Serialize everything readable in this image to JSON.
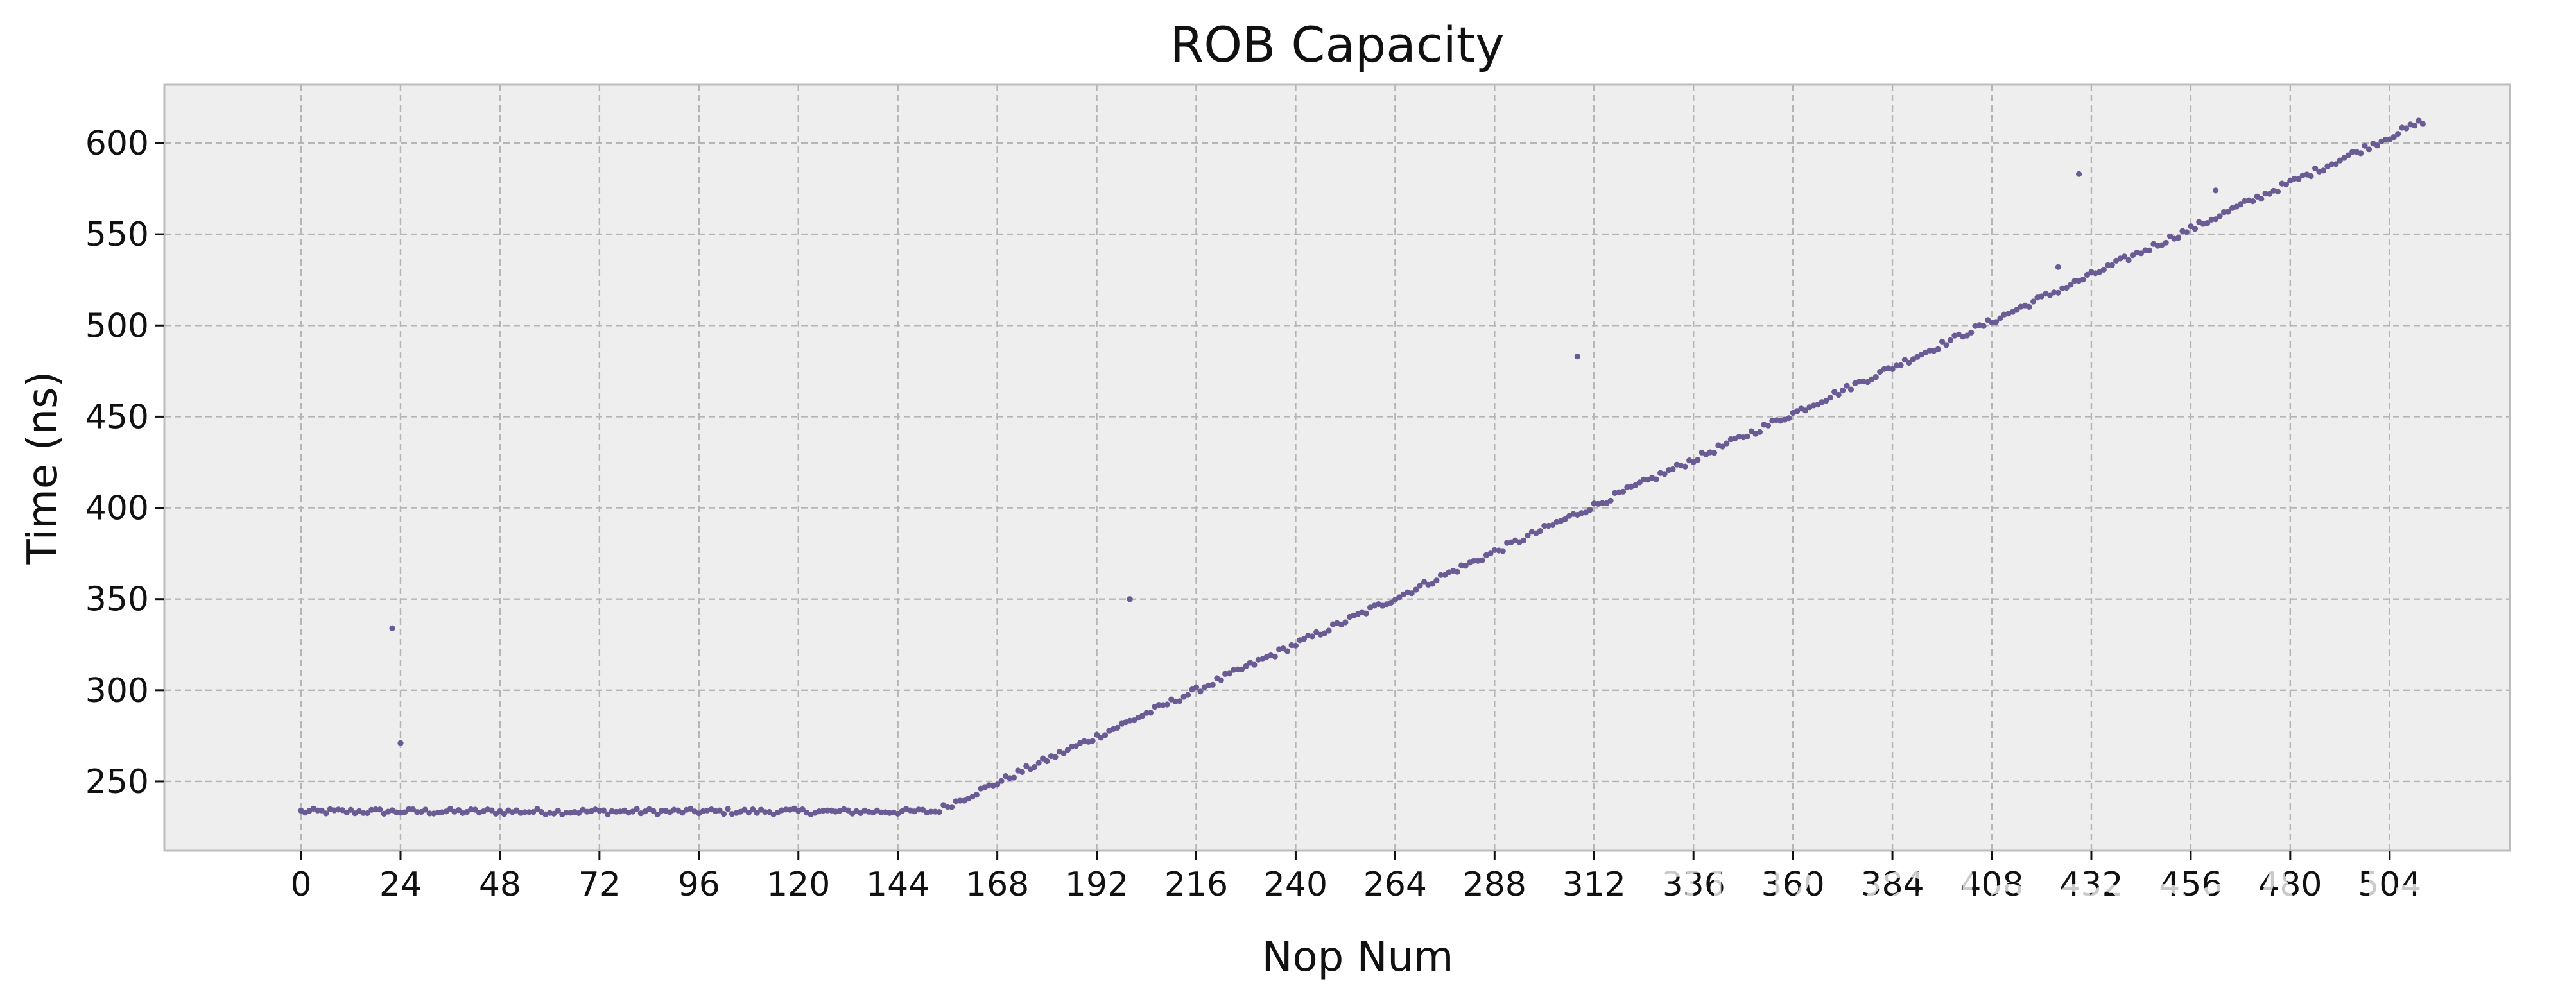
{
  "chart_data": {
    "type": "scatter",
    "title": "ROB Capacity",
    "xlabel": "Nop Num",
    "ylabel": "Time (ns)",
    "xlim": [
      -33,
      533
    ],
    "ylim": [
      212,
      632
    ],
    "xticks": [
      0,
      24,
      48,
      72,
      96,
      120,
      144,
      168,
      192,
      216,
      240,
      264,
      288,
      312,
      336,
      360,
      384,
      408,
      432,
      456,
      480,
      504
    ],
    "yticks": [
      250,
      300,
      350,
      400,
      450,
      500,
      550,
      600
    ],
    "grid": true,
    "marker_color": "#6b5b95",
    "background": "#eeeeee",
    "plateau": {
      "x_start": 0,
      "x_end": 153,
      "y": 233.5
    },
    "ramp": {
      "x_start": 153,
      "x_end": 512,
      "y_start": 233.5,
      "y_end": 612
    },
    "outliers": [
      {
        "x": 22,
        "y": 334
      },
      {
        "x": 24,
        "y": 271
      },
      {
        "x": 200,
        "y": 350
      },
      {
        "x": 308,
        "y": 483
      },
      {
        "x": 429,
        "y": 583
      },
      {
        "x": 424,
        "y": 532
      },
      {
        "x": 462,
        "y": 574
      }
    ],
    "watermark": "知乎 @JamesAslan"
  }
}
